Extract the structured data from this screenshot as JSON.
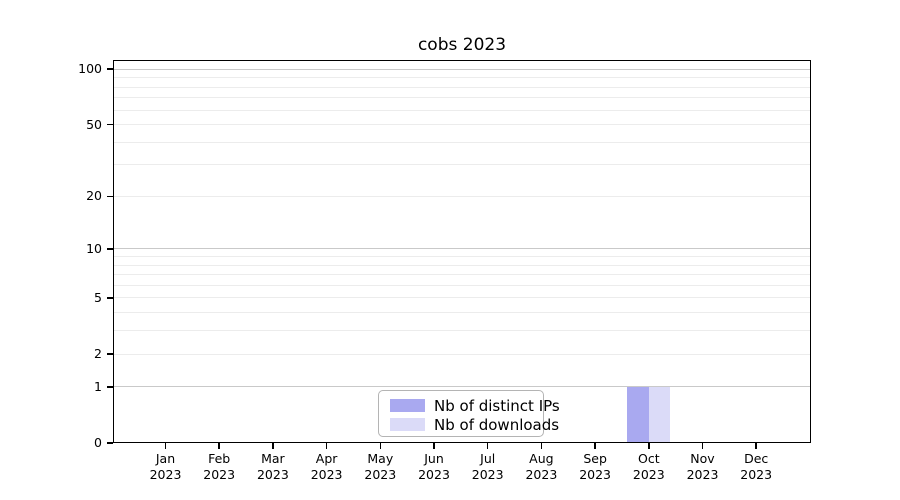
{
  "chart_data": {
    "type": "bar",
    "title": "cobs 2023",
    "categories": [
      "Jan 2023",
      "Feb 2023",
      "Mar 2023",
      "Apr 2023",
      "May 2023",
      "Jun 2023",
      "Jul 2023",
      "Aug 2023",
      "Sep 2023",
      "Oct 2023",
      "Nov 2023",
      "Dec 2023"
    ],
    "series": [
      {
        "name": "Nb of distinct IPs",
        "color": "#a9a9f0",
        "values": [
          0,
          0,
          0,
          0,
          0,
          0,
          0,
          0,
          0,
          1,
          0,
          0
        ]
      },
      {
        "name": "Nb of downloads",
        "color": "#dbdbf8",
        "values": [
          0,
          0,
          0,
          0,
          0,
          0,
          0,
          0,
          0,
          1,
          0,
          0
        ]
      }
    ],
    "xlabel": "",
    "ylabel": "",
    "yscale": "log1p",
    "yticks": [
      100,
      50,
      20,
      10,
      5,
      2,
      1,
      0
    ],
    "ylim": [
      0,
      113
    ],
    "grid": "horizontal",
    "grid_major": [
      1,
      10,
      100
    ],
    "grid_minor": [
      2,
      3,
      4,
      5,
      6,
      7,
      8,
      9,
      20,
      30,
      40,
      50,
      60,
      70,
      80,
      90
    ],
    "legend_position": "lower center"
  }
}
